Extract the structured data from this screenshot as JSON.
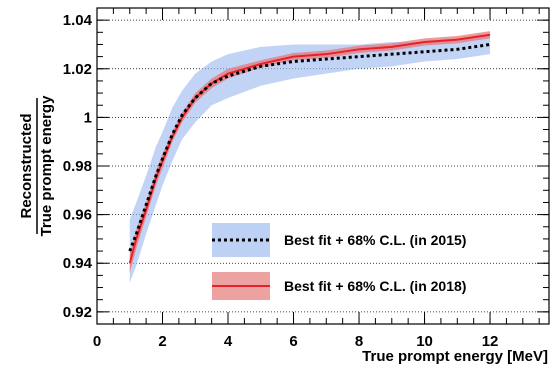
{
  "chart_data": {
    "type": "line",
    "xlabel": "True prompt energy [MeV]",
    "ylabel_numerator": "Reconstructed",
    "ylabel_denominator": "True prompt energy",
    "xlim": [
      0,
      13.8
    ],
    "ylim": [
      0.915,
      1.045
    ],
    "x_ticks": [
      0,
      2,
      4,
      6,
      8,
      10,
      12
    ],
    "x_tick_labels": [
      "0",
      "2",
      "4",
      "6",
      "8",
      "10",
      "12"
    ],
    "y_ticks": [
      0.92,
      0.94,
      0.96,
      0.98,
      1.0,
      1.02,
      1.04
    ],
    "y_tick_labels": [
      "0.92",
      "0.94",
      "0.96",
      "0.98",
      "1",
      "1.02",
      "1.04"
    ],
    "grid": "horizontal dotted",
    "legend_placement": "bottom-right",
    "series": [
      {
        "name": "Best fit + 68% C.L. (in 2015)",
        "line_color": "#000000",
        "line_style": "dotted",
        "band_color": "#9ab8ee",
        "x": [
          1.0,
          1.2,
          1.5,
          1.8,
          2.0,
          2.3,
          2.6,
          3.0,
          3.5,
          4.0,
          5.0,
          6.0,
          7.0,
          8.0,
          9.0,
          10.0,
          11.0,
          12.0
        ],
        "y": [
          0.945,
          0.952,
          0.964,
          0.976,
          0.983,
          0.993,
          1.001,
          1.008,
          1.014,
          1.017,
          1.021,
          1.023,
          1.024,
          1.025,
          1.026,
          1.027,
          1.028,
          1.03
        ],
        "band_half_width": [
          0.013,
          0.013,
          0.012,
          0.012,
          0.011,
          0.011,
          0.01,
          0.01,
          0.009,
          0.009,
          0.008,
          0.007,
          0.006,
          0.005,
          0.005,
          0.004,
          0.004,
          0.004
        ]
      },
      {
        "name": "Best fit + 68% C.L. (in 2018)",
        "line_color": "#e8202a",
        "line_style": "solid",
        "band_color": "#e57a7a",
        "x": [
          1.0,
          1.2,
          1.5,
          1.8,
          2.0,
          2.3,
          2.6,
          3.0,
          3.5,
          4.0,
          5.0,
          6.0,
          7.0,
          8.0,
          9.0,
          10.0,
          11.0,
          12.0
        ],
        "y": [
          0.94,
          0.95,
          0.962,
          0.975,
          0.982,
          0.992,
          1.0,
          1.008,
          1.014,
          1.018,
          1.022,
          1.025,
          1.026,
          1.028,
          1.029,
          1.031,
          1.032,
          1.034
        ],
        "band_half_width": [
          0.004,
          0.004,
          0.003,
          0.003,
          0.003,
          0.002,
          0.002,
          0.002,
          0.002,
          0.002,
          0.0015,
          0.0015,
          0.0015,
          0.0015,
          0.0015,
          0.0015,
          0.0015,
          0.0015
        ]
      }
    ]
  }
}
